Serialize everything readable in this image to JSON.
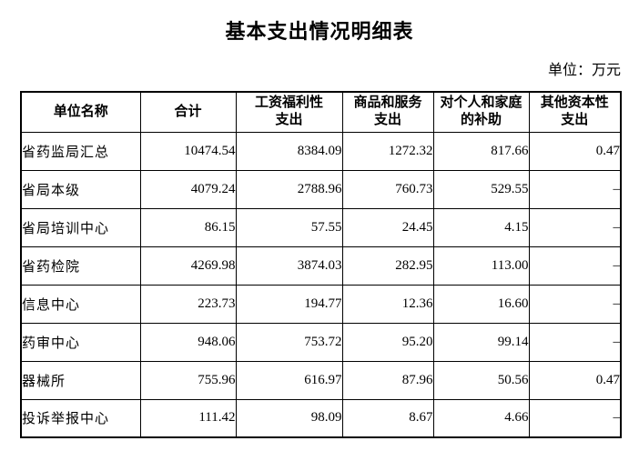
{
  "page": {
    "title": "基本支出情况明细表",
    "unit_label": "单位：万元"
  },
  "colors": {
    "text": "#000000",
    "border": "#000000",
    "background": "#ffffff"
  },
  "table": {
    "columns": [
      {
        "label": "单位名称",
        "lines": [
          "单位名称"
        ]
      },
      {
        "label": "合计",
        "lines": [
          "合计"
        ]
      },
      {
        "label": "工资福利性支出",
        "lines": [
          "工资福利性",
          "支出"
        ]
      },
      {
        "label": "商品和服务支出",
        "lines": [
          "商品和服务",
          "支出"
        ]
      },
      {
        "label": "对个人和家庭的补助",
        "lines": [
          "对个人和家庭",
          "的补助"
        ]
      },
      {
        "label": "其他资本性支出",
        "lines": [
          "其他资本性",
          "支出"
        ]
      }
    ],
    "rows": [
      {
        "name": "省药监局汇总",
        "values": [
          "10474.54",
          "8384.09",
          "1272.32",
          "817.66",
          "0.47"
        ]
      },
      {
        "name": "省局本级",
        "values": [
          "4079.24",
          "2788.96",
          "760.73",
          "529.55",
          "–"
        ]
      },
      {
        "name": "省局培训中心",
        "values": [
          "86.15",
          "57.55",
          "24.45",
          "4.15",
          "–"
        ]
      },
      {
        "name": "省药检院",
        "values": [
          "4269.98",
          "3874.03",
          "282.95",
          "113.00",
          "–"
        ]
      },
      {
        "name": "信息中心",
        "values": [
          "223.73",
          "194.77",
          "12.36",
          "16.60",
          "–"
        ]
      },
      {
        "name": "药审中心",
        "values": [
          "948.06",
          "753.72",
          "95.20",
          "99.14",
          "–"
        ]
      },
      {
        "name": "器械所",
        "values": [
          "755.96",
          "616.97",
          "87.96",
          "50.56",
          "0.47"
        ]
      },
      {
        "name": "投诉举报中心",
        "values": [
          "111.42",
          "98.09",
          "8.67",
          "4.66",
          "–"
        ]
      }
    ]
  }
}
